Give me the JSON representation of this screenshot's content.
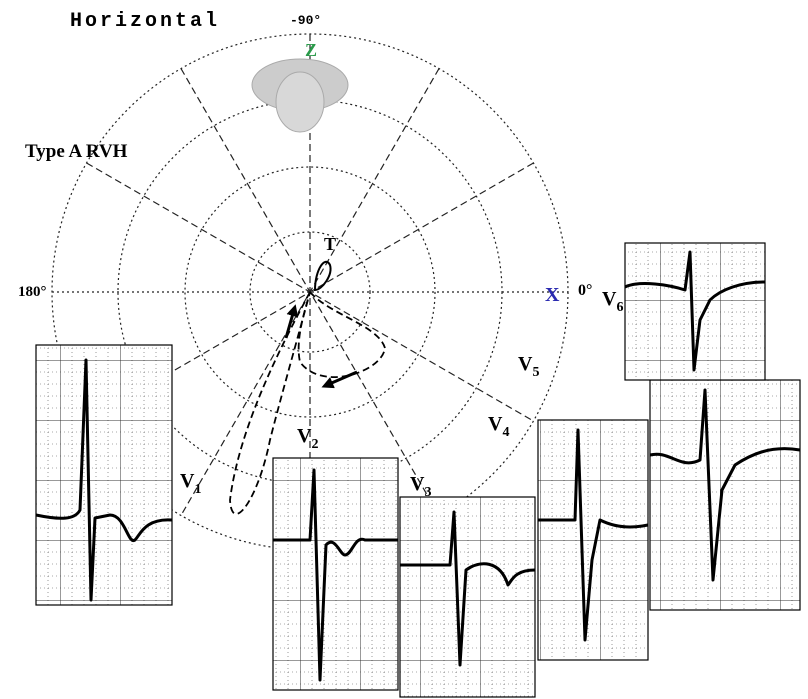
{
  "title": "Horizontal",
  "top_angle": "-90°",
  "left_angle": "180°",
  "right_angle": "0°",
  "z_axis": "Z",
  "x_axis": "X",
  "diagnosis": "Type A RVH",
  "t_loop": "T",
  "leads": [
    {
      "letter": "V",
      "sub": "1"
    },
    {
      "letter": "V",
      "sub": "2"
    },
    {
      "letter": "V",
      "sub": "3"
    },
    {
      "letter": "V",
      "sub": "4"
    },
    {
      "letter": "V",
      "sub": "5"
    },
    {
      "letter": "V",
      "sub": "6"
    }
  ]
}
